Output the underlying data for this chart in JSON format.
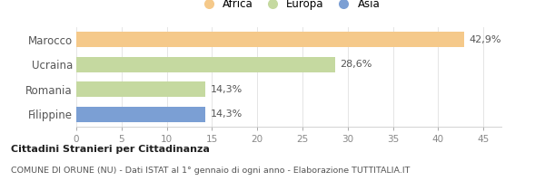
{
  "categories": [
    "Marocco",
    "Ucraina",
    "Romania",
    "Filippine"
  ],
  "values": [
    42.9,
    28.6,
    14.3,
    14.3
  ],
  "labels": [
    "42,9%",
    "28,6%",
    "14,3%",
    "14,3%"
  ],
  "colors": [
    "#f5c98a",
    "#c5d9a0",
    "#c5d9a0",
    "#7b9fd4"
  ],
  "legend": [
    {
      "label": "Africa",
      "color": "#f5c98a"
    },
    {
      "label": "Europa",
      "color": "#c5d9a0"
    },
    {
      "label": "Asia",
      "color": "#7b9fd4"
    }
  ],
  "xlim": [
    0,
    47
  ],
  "xticks": [
    0,
    5,
    10,
    15,
    20,
    25,
    30,
    35,
    40,
    45
  ],
  "title_bold": "Cittadini Stranieri per Cittadinanza",
  "subtitle": "COMUNE DI ORUNE (NU) - Dati ISTAT al 1° gennaio di ogni anno - Elaborazione TUTTITALIA.IT",
  "background_color": "#ffffff",
  "bar_height": 0.62,
  "label_fontsize": 8,
  "tick_fontsize": 7.5,
  "ytick_fontsize": 8.5
}
